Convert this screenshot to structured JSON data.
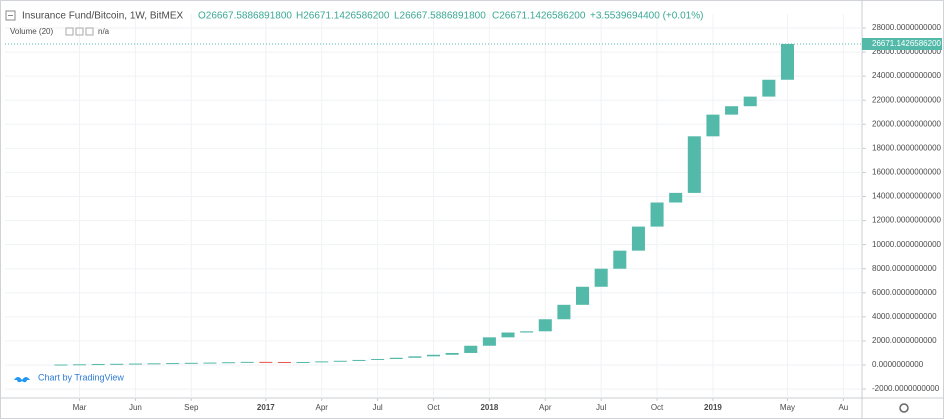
{
  "header": {
    "symbol": "Insurance Fund/Bitcoin, 1W, BitMEX",
    "open": "O26667.5886891800",
    "high": "H26671.1426586200",
    "low": "L26667.5886891800",
    "close": "C26671.1426586200",
    "change": "+3.5539694400 (+0.01%)",
    "volume": "Volume (20)",
    "volume_value": "n/a",
    "watermark": "Chart by TradingView",
    "last_price_label": "26671.1426586200"
  },
  "chart_data": {
    "type": "candlestick",
    "x": [
      "2016-02",
      "2016-03",
      "2016-04",
      "2016-05",
      "2016-06",
      "2016-07",
      "2016-08",
      "2016-09",
      "2016-10",
      "2016-11",
      "2016-12",
      "2017-01",
      "2017-02",
      "2017-03",
      "2017-04",
      "2017-05",
      "2017-06",
      "2017-07",
      "2017-08",
      "2017-09",
      "2017-10",
      "2017-11",
      "2017-12",
      "2018-01",
      "2018-02",
      "2018-03",
      "2018-04",
      "2018-05",
      "2018-06",
      "2018-07",
      "2018-08",
      "2018-09",
      "2018-10",
      "2018-11",
      "2018-12",
      "2019-01",
      "2019-02",
      "2019-03",
      "2019-04",
      "2019-05"
    ],
    "open": [
      20,
      40,
      60,
      80,
      100,
      120,
      140,
      160,
      180,
      200,
      230,
      260,
      250,
      230,
      250,
      300,
      350,
      420,
      500,
      600,
      720,
      850,
      1000,
      1600,
      2300,
      2700,
      2800,
      3800,
      5000,
      6500,
      8000,
      9500,
      11500,
      13500,
      14300,
      19000,
      20800,
      21500,
      22300,
      23700
    ],
    "close": [
      40,
      60,
      80,
      100,
      120,
      140,
      160,
      180,
      200,
      230,
      260,
      250,
      230,
      250,
      300,
      350,
      420,
      500,
      600,
      720,
      850,
      1000,
      1600,
      2300,
      2700,
      2800,
      3800,
      5000,
      6500,
      8000,
      9500,
      11500,
      13500,
      14300,
      19000,
      20800,
      21500,
      22300,
      23700,
      26671.14265862
    ],
    "up_color": "#53b9a9",
    "down_color": "#e8554e",
    "xlim": [
      "2015-11",
      "2019-09"
    ],
    "xticks": [
      {
        "value": "2016-03",
        "label": "Mar"
      },
      {
        "value": "2016-06",
        "label": "Jun"
      },
      {
        "value": "2016-09",
        "label": "Sep"
      },
      {
        "value": "2017-01",
        "label": "2017"
      },
      {
        "value": "2017-04",
        "label": "Apr"
      },
      {
        "value": "2017-07",
        "label": "Jul"
      },
      {
        "value": "2017-10",
        "label": "Oct"
      },
      {
        "value": "2018-01",
        "label": "2018"
      },
      {
        "value": "2018-04",
        "label": "Apr"
      },
      {
        "value": "2018-07",
        "label": "Jul"
      },
      {
        "value": "2018-10",
        "label": "Oct"
      },
      {
        "value": "2019-01",
        "label": "2019"
      },
      {
        "value": "2019-05",
        "label": "May"
      },
      {
        "value": "2019-08",
        "label": "Au"
      }
    ],
    "ylim": [
      -2742,
      29163
    ],
    "yticks": [
      {
        "value": -2000,
        "label": "-2000.0000000000"
      },
      {
        "value": 0,
        "label": "0.0000000000"
      },
      {
        "value": 2000,
        "label": "2000.0000000000"
      },
      {
        "value": 4000,
        "label": "4000.0000000000"
      },
      {
        "value": 6000,
        "label": "6000.0000000000"
      },
      {
        "value": 8000,
        "label": "8000.0000000000"
      },
      {
        "value": 10000,
        "label": "10000.0000000000"
      },
      {
        "value": 12000,
        "label": "12000.0000000000"
      },
      {
        "value": 14000,
        "label": "14000.0000000000"
      },
      {
        "value": 16000,
        "label": "16000.0000000000"
      },
      {
        "value": 18000,
        "label": "18000.0000000000"
      },
      {
        "value": 20000,
        "label": "20000.0000000000"
      },
      {
        "value": 22000,
        "label": "22000.0000000000"
      },
      {
        "value": 24000,
        "label": "24000.0000000000"
      },
      {
        "value": 26000,
        "label": "26000.0000000000"
      },
      {
        "value": 28000,
        "label": "28000.0000000000"
      }
    ],
    "grid": true
  }
}
